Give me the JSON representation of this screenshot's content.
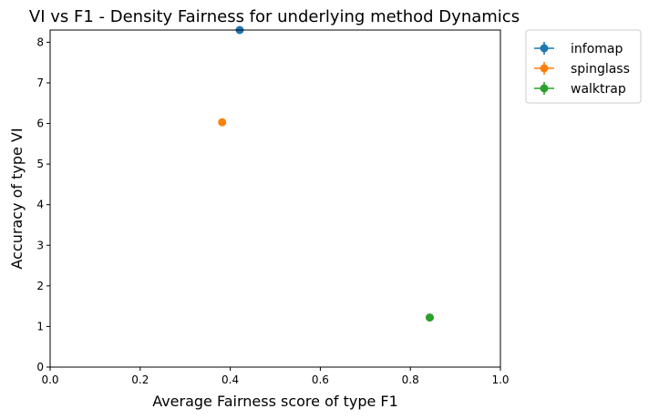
{
  "chart_data": {
    "type": "scatter",
    "title": "VI vs F1 - Density Fairness for underlying method Dynamics",
    "xlabel": "Average Fairness score of type F1",
    "ylabel": "Accuracy of type VI",
    "xlim": [
      0.0,
      1.0
    ],
    "ylim": [
      0.0,
      8.3
    ],
    "xticks": [
      0.0,
      0.2,
      0.4,
      0.6,
      0.8,
      1.0
    ],
    "xtick_labels": [
      "0.0",
      "0.2",
      "0.4",
      "0.6",
      "0.8",
      "1.0"
    ],
    "yticks": [
      0,
      1,
      2,
      3,
      4,
      5,
      6,
      7,
      8
    ],
    "ytick_labels": [
      "0",
      "1",
      "2",
      "3",
      "4",
      "5",
      "6",
      "7",
      "8"
    ],
    "grid": false,
    "legend_position": "outside top-right",
    "series": [
      {
        "name": "infomap",
        "color": "#1f77b4",
        "x": [
          0.421
        ],
        "y": [
          8.3
        ]
      },
      {
        "name": "spinglass",
        "color": "#ff7f0e",
        "x": [
          0.382
        ],
        "y": [
          6.03
        ]
      },
      {
        "name": "walktrap",
        "color": "#2ca02c",
        "x": [
          0.843
        ],
        "y": [
          1.22
        ]
      }
    ]
  }
}
